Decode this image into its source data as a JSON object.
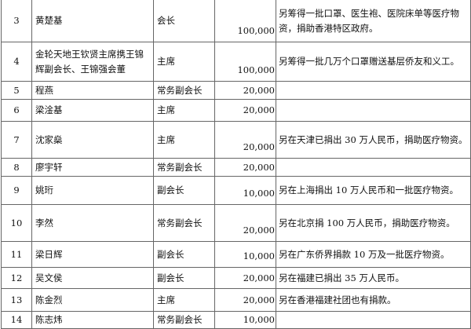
{
  "rows": [
    {
      "no": "3",
      "name": "黄楚基",
      "title": "会长",
      "amount": "100,000",
      "note": "另筹得一批口罩、医生袍、医院床单等医疗物资，捐助香港特区政府。"
    },
    {
      "no": "4",
      "name": "金轮天地王钦贤主席携王锦辉副会长、王锦强会董",
      "title": "主席",
      "amount": "100,000",
      "note": "另筹得一批几万个口罩赠送基层侨友和义工。"
    },
    {
      "no": "5",
      "name": "程燕",
      "title": "常务副会长",
      "amount": "20,000",
      "note": ""
    },
    {
      "no": "6",
      "name": "梁淦基",
      "title": "主席",
      "amount": "20,000",
      "note": ""
    },
    {
      "no": "7",
      "name": "沈家燊",
      "title": "主席",
      "amount": "20,000",
      "note": "另在天津已捐出 30 万人民币，捐助医疗物资。"
    },
    {
      "no": "8",
      "name": "廖宇轩",
      "title": "常务副会长",
      "amount": "20,000",
      "note": ""
    },
    {
      "no": "9",
      "name": "姚珩",
      "title": "副会长",
      "amount": "10,000",
      "note": "另在上海捐出 10 万人民币和一批医疗物资。"
    },
    {
      "no": "10",
      "name": "李然",
      "title": "常务副会长",
      "amount": "20,000",
      "note": "另在北京捐 100 万人民币，捐助医疗物资。"
    },
    {
      "no": "11",
      "name": "梁日辉",
      "title": "副会长",
      "amount": "10,000",
      "note": "另在广东侨界捐款 10 万及一批医疗物资。"
    },
    {
      "no": "12",
      "name": "吴文侯",
      "title": "副会长",
      "amount": "20,000",
      "note": "另在福建已捐出 35 万人民币。"
    },
    {
      "no": "13",
      "name": "陈金烈",
      "title": "主席",
      "amount": "20,000",
      "note": "另在香港福建社团也有捐款。"
    },
    {
      "no": "14",
      "name": "陈志炜",
      "title": "常务副会长",
      "amount": "10,000",
      "note": ""
    }
  ]
}
